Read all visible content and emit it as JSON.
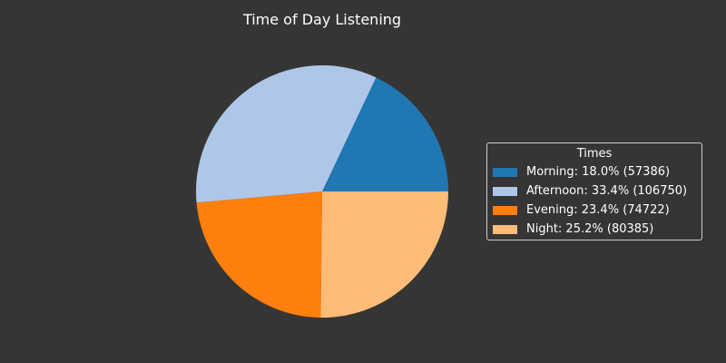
{
  "chart_data": {
    "type": "pie",
    "title": "Time of Day Listening",
    "legend_title": "Times",
    "legend_position": "right",
    "start_angle_deg": 0,
    "direction": "counterclockwise",
    "slices": [
      {
        "name": "Morning",
        "value": 57386,
        "percent": 18.0,
        "label": "Morning: 18.0% (57386)",
        "color": "#1f77b4"
      },
      {
        "name": "Afternoon",
        "value": 106750,
        "percent": 33.4,
        "label": "Afternoon: 33.4% (106750)",
        "color": "#aec7e8"
      },
      {
        "name": "Evening",
        "value": 74722,
        "percent": 23.4,
        "label": "Evening: 23.4% (74722)",
        "color": "#ff7f0e"
      },
      {
        "name": "Night",
        "value": 80385,
        "percent": 25.2,
        "label": "Night: 25.2% (80385)",
        "color": "#ffbb78"
      }
    ]
  }
}
